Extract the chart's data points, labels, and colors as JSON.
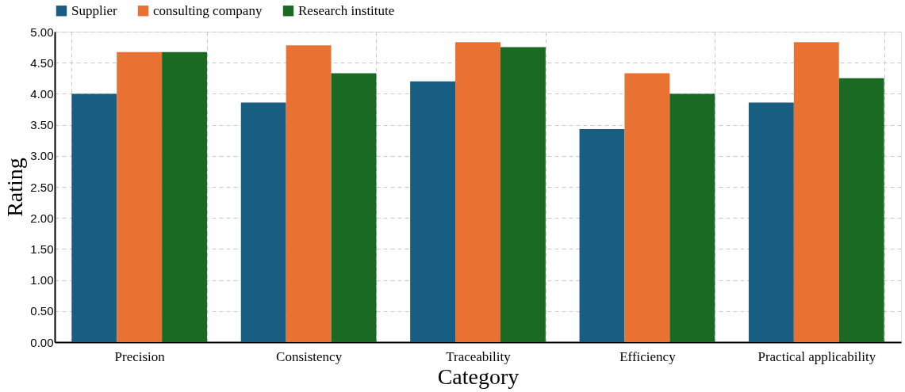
{
  "chart_data": {
    "type": "bar",
    "xlabel": "Category",
    "ylabel": "Rating",
    "categories": [
      "Precision",
      "Consistency",
      "Traceability",
      "Efficiency",
      "Practical applicability"
    ],
    "series": [
      {
        "name": "Supplier",
        "color": "#175e82",
        "values": [
          4.0,
          3.86,
          4.2,
          3.43,
          3.86
        ]
      },
      {
        "name": "consulting company",
        "color": "#e97132",
        "values": [
          4.67,
          4.78,
          4.83,
          4.33,
          4.83
        ]
      },
      {
        "name": "Research institute",
        "color": "#1b6a24",
        "values": [
          4.67,
          4.33,
          4.75,
          4.0,
          4.25
        ]
      }
    ],
    "ylim": [
      0,
      5
    ],
    "yticks": [
      {
        "value": 0,
        "label": "0.00"
      },
      {
        "value": 0.5,
        "label": "0.50"
      },
      {
        "value": 1,
        "label": "1.00"
      },
      {
        "value": 1.5,
        "label": "1.50"
      },
      {
        "value": 2,
        "label": "2.00"
      },
      {
        "value": 2.5,
        "label": "2.50"
      },
      {
        "value": 3,
        "label": "3.00"
      },
      {
        "value": 3.5,
        "label": "3.50"
      },
      {
        "value": 4,
        "label": "4.00"
      },
      {
        "value": 4.5,
        "label": "4.50"
      },
      {
        "value": 5,
        "label": "5.00"
      }
    ],
    "grid": true,
    "legend": "top"
  }
}
